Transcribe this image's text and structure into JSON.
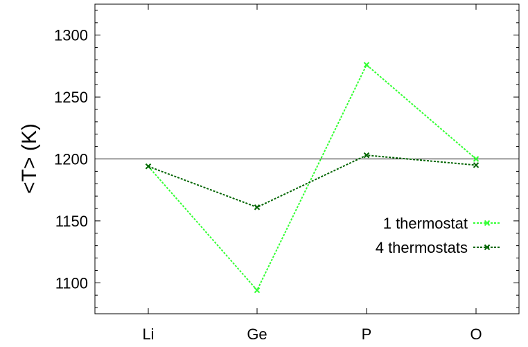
{
  "chart_data": {
    "type": "line",
    "title": "",
    "xlabel": "",
    "ylabel": "<T> (K)",
    "categories": [
      "Li",
      "Ge",
      "P",
      "O"
    ],
    "ylim": [
      1075,
      1325
    ],
    "yticks": [
      "1100",
      "1150",
      "1200",
      "1250",
      "1300"
    ],
    "ytick_values": [
      1100,
      1150,
      1200,
      1250,
      1300
    ],
    "reference_line": 1200,
    "grid": false,
    "legend_position": "right",
    "series": [
      {
        "name": "1 thermostat",
        "values": [
          1194,
          1094,
          1276,
          1200
        ],
        "color": "#33ff33"
      },
      {
        "name": "4 thermostats",
        "values": [
          1194,
          1161,
          1203,
          1195
        ],
        "color": "#006400"
      }
    ]
  }
}
